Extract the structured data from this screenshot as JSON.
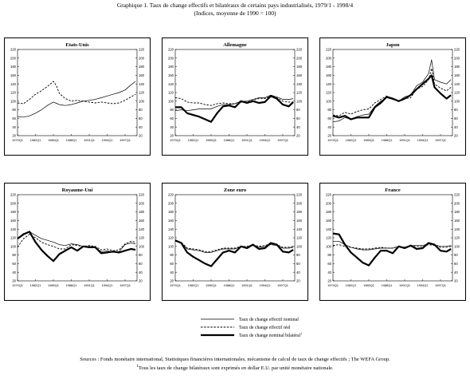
{
  "title": {
    "line1": "Graphique 1. Taux de change effectifs et bilatéraux de certains pays industrialisés, 1979/1 - 1998/4",
    "line2": "(Indices, moyenne de 1990 = 100)"
  },
  "legend": {
    "items": [
      {
        "label": "Taux de change effectif nominal",
        "style": "solid-thin"
      },
      {
        "label": "Taux de change effectif réel",
        "style": "dashed"
      },
      {
        "label": "Taux de change nominal bilatéral",
        "style": "solid-thick",
        "sup": "1"
      }
    ]
  },
  "sources": {
    "line1": "Sources : Fonds monétaire international, Statistiques financières internationales, mécanisme de calcul de taux de change effectifs ; The WEFA Group.",
    "line2_sup": "1",
    "line2": "Tous les taux de change bilatéraux sont exprimés en dollar E.U. par unité monétaire nationale."
  },
  "colors": {
    "line": "#000000",
    "background": "#ffffff"
  },
  "chart_data": [
    {
      "type": "line",
      "title": "Etats-Unis",
      "ylim": [
        20,
        220
      ],
      "yticks": [
        20,
        40,
        60,
        80,
        100,
        120,
        140,
        160,
        180,
        200,
        220
      ],
      "xlim": [
        1979,
        1999
      ],
      "xticks": [
        "1979Q1",
        "1982Q1",
        "1985Q1",
        "1988Q1",
        "1991Q1",
        "1994Q1",
        "1997Q1"
      ],
      "series": [
        {
          "style": "solid-thin",
          "x": [
            1979,
            1980,
            1981,
            1982,
            1983,
            1984,
            1985,
            1985.5,
            1986,
            1987,
            1988,
            1989,
            1990,
            1991,
            1992,
            1993,
            1994,
            1995,
            1996,
            1997,
            1998,
            1998.75
          ],
          "values": [
            64,
            63,
            66,
            72,
            80,
            90,
            98,
            95,
            92,
            90,
            92,
            96,
            100,
            102,
            104,
            108,
            112,
            116,
            120,
            126,
            138,
            146
          ]
        },
        {
          "style": "dashed",
          "x": [
            1979,
            1980,
            1981,
            1982,
            1983,
            1984,
            1985,
            1985.5,
            1986,
            1987,
            1988,
            1989,
            1990,
            1991,
            1992,
            1993,
            1994,
            1995,
            1996,
            1997,
            1998,
            1998.75
          ],
          "values": [
            96,
            94,
            104,
            116,
            124,
            134,
            146,
            136,
            118,
            106,
            100,
            102,
            100,
            98,
            96,
            98,
            96,
            94,
            96,
            102,
            110,
            116
          ]
        }
      ]
    },
    {
      "type": "line",
      "title": "Allemagne",
      "ylim": [
        20,
        220
      ],
      "yticks": [
        20,
        40,
        60,
        80,
        100,
        120,
        140,
        160,
        180,
        200,
        220
      ],
      "xlim": [
        1979,
        1999
      ],
      "xticks": [
        "1979Q1",
        "1982Q1",
        "1985Q1",
        "1988Q1",
        "1991Q1",
        "1994Q1",
        "1997Q1"
      ],
      "series": [
        {
          "style": "solid-thin",
          "x": [
            1979,
            1980,
            1981,
            1982,
            1983,
            1984,
            1985,
            1986,
            1987,
            1988,
            1989,
            1990,
            1991,
            1992,
            1993,
            1994,
            1995,
            1996,
            1997,
            1998,
            1998.75
          ],
          "values": [
            78,
            80,
            78,
            80,
            82,
            82,
            82,
            88,
            92,
            92,
            94,
            100,
            100,
            104,
            108,
            108,
            114,
            110,
            104,
            104,
            106
          ]
        },
        {
          "style": "dashed",
          "x": [
            1979,
            1980,
            1981,
            1982,
            1983,
            1984,
            1985,
            1986,
            1987,
            1988,
            1989,
            1990,
            1991,
            1992,
            1993,
            1994,
            1995,
            1996,
            1997,
            1998,
            1998.75
          ],
          "values": [
            108,
            106,
            98,
            96,
            96,
            92,
            90,
            94,
            96,
            94,
            94,
            100,
            98,
            102,
            106,
            106,
            112,
            108,
            100,
            98,
            98
          ]
        },
        {
          "style": "solid-thick",
          "x": [
            1979,
            1980,
            1981,
            1982,
            1983,
            1984,
            1985,
            1986,
            1987,
            1988,
            1989,
            1990,
            1991,
            1992,
            1993,
            1994,
            1995,
            1996,
            1997,
            1998,
            1998.75
          ],
          "values": [
            86,
            86,
            72,
            68,
            64,
            58,
            52,
            72,
            88,
            90,
            86,
            100,
            96,
            100,
            96,
            98,
            112,
            106,
            92,
            88,
            98
          ]
        }
      ]
    },
    {
      "type": "line",
      "title": "Japon",
      "ylim": [
        20,
        220
      ],
      "yticks": [
        20,
        40,
        60,
        80,
        100,
        120,
        140,
        160,
        180,
        200,
        220
      ],
      "xlim": [
        1979,
        1999
      ],
      "xticks": [
        "1979Q1",
        "1982Q1",
        "1985Q1",
        "1988Q1",
        "1991Q1",
        "1994Q1",
        "1997Q1"
      ],
      "series": [
        {
          "style": "solid-thin",
          "x": [
            1979,
            1980,
            1981,
            1982,
            1983,
            1984,
            1985,
            1986,
            1987,
            1988,
            1989,
            1990,
            1991,
            1992,
            1993,
            1994,
            1995,
            1995.5,
            1996,
            1997,
            1998,
            1998.75
          ],
          "values": [
            52,
            54,
            62,
            58,
            64,
            68,
            70,
            88,
            100,
            108,
            104,
            100,
            110,
            114,
            136,
            144,
            164,
            196,
            150,
            144,
            140,
            150
          ]
        },
        {
          "style": "dashed",
          "x": [
            1979,
            1980,
            1981,
            1982,
            1983,
            1984,
            1985,
            1986,
            1987,
            1988,
            1989,
            1990,
            1991,
            1992,
            1993,
            1994,
            1995,
            1995.5,
            1996,
            1997,
            1998,
            1998.75
          ],
          "values": [
            68,
            66,
            74,
            70,
            76,
            80,
            82,
            96,
            104,
            112,
            106,
            100,
            106,
            108,
            128,
            134,
            150,
            176,
            140,
            130,
            124,
            132
          ]
        },
        {
          "style": "solid-thick",
          "x": [
            1979,
            1980,
            1981,
            1982,
            1983,
            1984,
            1985,
            1986,
            1987,
            1988,
            1989,
            1990,
            1991,
            1992,
            1993,
            1994,
            1995,
            1995.5,
            1996,
            1997,
            1998,
            1998.75
          ],
          "values": [
            66,
            62,
            66,
            58,
            62,
            62,
            62,
            86,
            96,
            110,
            106,
            100,
            106,
            114,
            128,
            140,
            152,
            160,
            132,
            118,
            106,
            114
          ]
        }
      ]
    },
    {
      "type": "line",
      "title": "Royaume-Uni",
      "ylim": [
        20,
        220
      ],
      "yticks": [
        20,
        40,
        60,
        80,
        100,
        120,
        140,
        160,
        180,
        200,
        220
      ],
      "xlim": [
        1979,
        1999
      ],
      "xticks": [
        "1979Q1",
        "1982Q1",
        "1985Q1",
        "1988Q1",
        "1991Q1",
        "1994Q1",
        "1997Q1"
      ],
      "series": [
        {
          "style": "solid-thin",
          "x": [
            1979,
            1980,
            1981,
            1982,
            1983,
            1984,
            1985,
            1986,
            1987,
            1988,
            1989,
            1990,
            1991,
            1992,
            1993,
            1994,
            1995,
            1996,
            1997,
            1998,
            1998.75
          ],
          "values": [
            118,
            130,
            134,
            126,
            118,
            114,
            110,
            104,
            102,
            106,
            104,
            100,
            100,
            98,
            88,
            90,
            86,
            88,
            104,
            108,
            106
          ]
        },
        {
          "style": "dashed",
          "x": [
            1979,
            1980,
            1981,
            1982,
            1983,
            1984,
            1985,
            1986,
            1987,
            1988,
            1989,
            1990,
            1991,
            1992,
            1993,
            1994,
            1995,
            1996,
            1997,
            1998,
            1998.75
          ],
          "values": [
            98,
            118,
            128,
            120,
            110,
            104,
            100,
            94,
            94,
            104,
            102,
            100,
            102,
            100,
            92,
            94,
            90,
            92,
            106,
            112,
            110
          ]
        },
        {
          "style": "solid-thick",
          "x": [
            1979,
            1980,
            1981,
            1982,
            1983,
            1984,
            1985,
            1986,
            1987,
            1988,
            1989,
            1990,
            1991,
            1992,
            1993,
            1994,
            1995,
            1996,
            1997,
            1998,
            1998.75
          ],
          "values": [
            118,
            128,
            134,
            110,
            92,
            78,
            66,
            82,
            90,
            98,
            90,
            100,
            98,
            98,
            84,
            86,
            88,
            86,
            90,
            94,
            92
          ]
        }
      ]
    },
    {
      "type": "line",
      "title": "Zone euro",
      "ylim": [
        20,
        220
      ],
      "yticks": [
        20,
        40,
        60,
        80,
        100,
        120,
        140,
        160,
        180,
        200,
        220
      ],
      "xlim": [
        1979,
        1999
      ],
      "xticks": [
        "1979Q1",
        "1982Q1",
        "1985Q1",
        "1988Q1",
        "1991Q1",
        "1994Q1",
        "1997Q1"
      ],
      "series": [
        {
          "style": "solid-thin",
          "x": [
            1979,
            1980,
            1981,
            1982,
            1983,
            1984,
            1985,
            1986,
            1987,
            1988,
            1989,
            1990,
            1991,
            1992,
            1993,
            1994,
            1995,
            1996,
            1997,
            1998,
            1998.75
          ],
          "values": [
            112,
            108,
            94,
            92,
            90,
            86,
            86,
            90,
            94,
            94,
            94,
            100,
            98,
            102,
            98,
            100,
            104,
            102,
            96,
            96,
            98
          ]
        },
        {
          "style": "dashed",
          "x": [
            1979,
            1980,
            1981,
            1982,
            1983,
            1984,
            1985,
            1986,
            1987,
            1988,
            1989,
            1990,
            1991,
            1992,
            1993,
            1994,
            1995,
            1996,
            1997,
            1998,
            1998.75
          ],
          "values": [
            112,
            110,
            96,
            94,
            92,
            88,
            88,
            92,
            96,
            96,
            96,
            100,
            100,
            104,
            100,
            102,
            106,
            104,
            98,
            98,
            100
          ]
        },
        {
          "style": "solid-thick",
          "x": [
            1979,
            1980,
            1981,
            1982,
            1983,
            1984,
            1985,
            1986,
            1987,
            1988,
            1989,
            1990,
            1991,
            1992,
            1993,
            1994,
            1995,
            1996,
            1997,
            1998,
            1998.75
          ],
          "values": [
            114,
            108,
            86,
            76,
            68,
            60,
            54,
            70,
            86,
            90,
            86,
            100,
            96,
            104,
            94,
            96,
            108,
            104,
            88,
            86,
            92
          ]
        }
      ]
    },
    {
      "type": "line",
      "title": "France",
      "ylim": [
        20,
        220
      ],
      "yticks": [
        20,
        40,
        60,
        80,
        100,
        120,
        140,
        160,
        180,
        200,
        220
      ],
      "xlim": [
        1979,
        1999
      ],
      "xticks": [
        "1979Q1",
        "1982Q1",
        "1985Q1",
        "1988Q1",
        "1991Q1",
        "1994Q1",
        "1997Q1"
      ],
      "series": [
        {
          "style": "solid-thin",
          "x": [
            1979,
            1980,
            1981,
            1982,
            1983,
            1984,
            1985,
            1986,
            1987,
            1988,
            1989,
            1990,
            1991,
            1992,
            1993,
            1994,
            1995,
            1996,
            1997,
            1998,
            1998.75
          ],
          "values": [
            112,
            112,
            104,
            98,
            94,
            92,
            92,
            94,
            96,
            96,
            96,
            100,
            98,
            102,
            102,
            102,
            106,
            104,
            100,
            100,
            102
          ]
        },
        {
          "style": "dashed",
          "x": [
            1979,
            1980,
            1981,
            1982,
            1983,
            1984,
            1985,
            1986,
            1987,
            1988,
            1989,
            1990,
            1991,
            1992,
            1993,
            1994,
            1995,
            1996,
            1997,
            1998,
            1998.75
          ],
          "values": [
            102,
            104,
            100,
            98,
            96,
            94,
            94,
            96,
            98,
            96,
            96,
            100,
            98,
            100,
            100,
            100,
            104,
            102,
            98,
            98,
            100
          ]
        },
        {
          "style": "solid-thick",
          "x": [
            1979,
            1980,
            1981,
            1982,
            1983,
            1984,
            1985,
            1986,
            1987,
            1988,
            1989,
            1990,
            1991,
            1992,
            1993,
            1994,
            1995,
            1996,
            1997,
            1998,
            1998.75
          ],
          "values": [
            130,
            128,
            104,
            86,
            74,
            62,
            56,
            74,
            90,
            90,
            84,
            100,
            96,
            102,
            94,
            96,
            108,
            104,
            90,
            88,
            94
          ]
        }
      ]
    }
  ]
}
